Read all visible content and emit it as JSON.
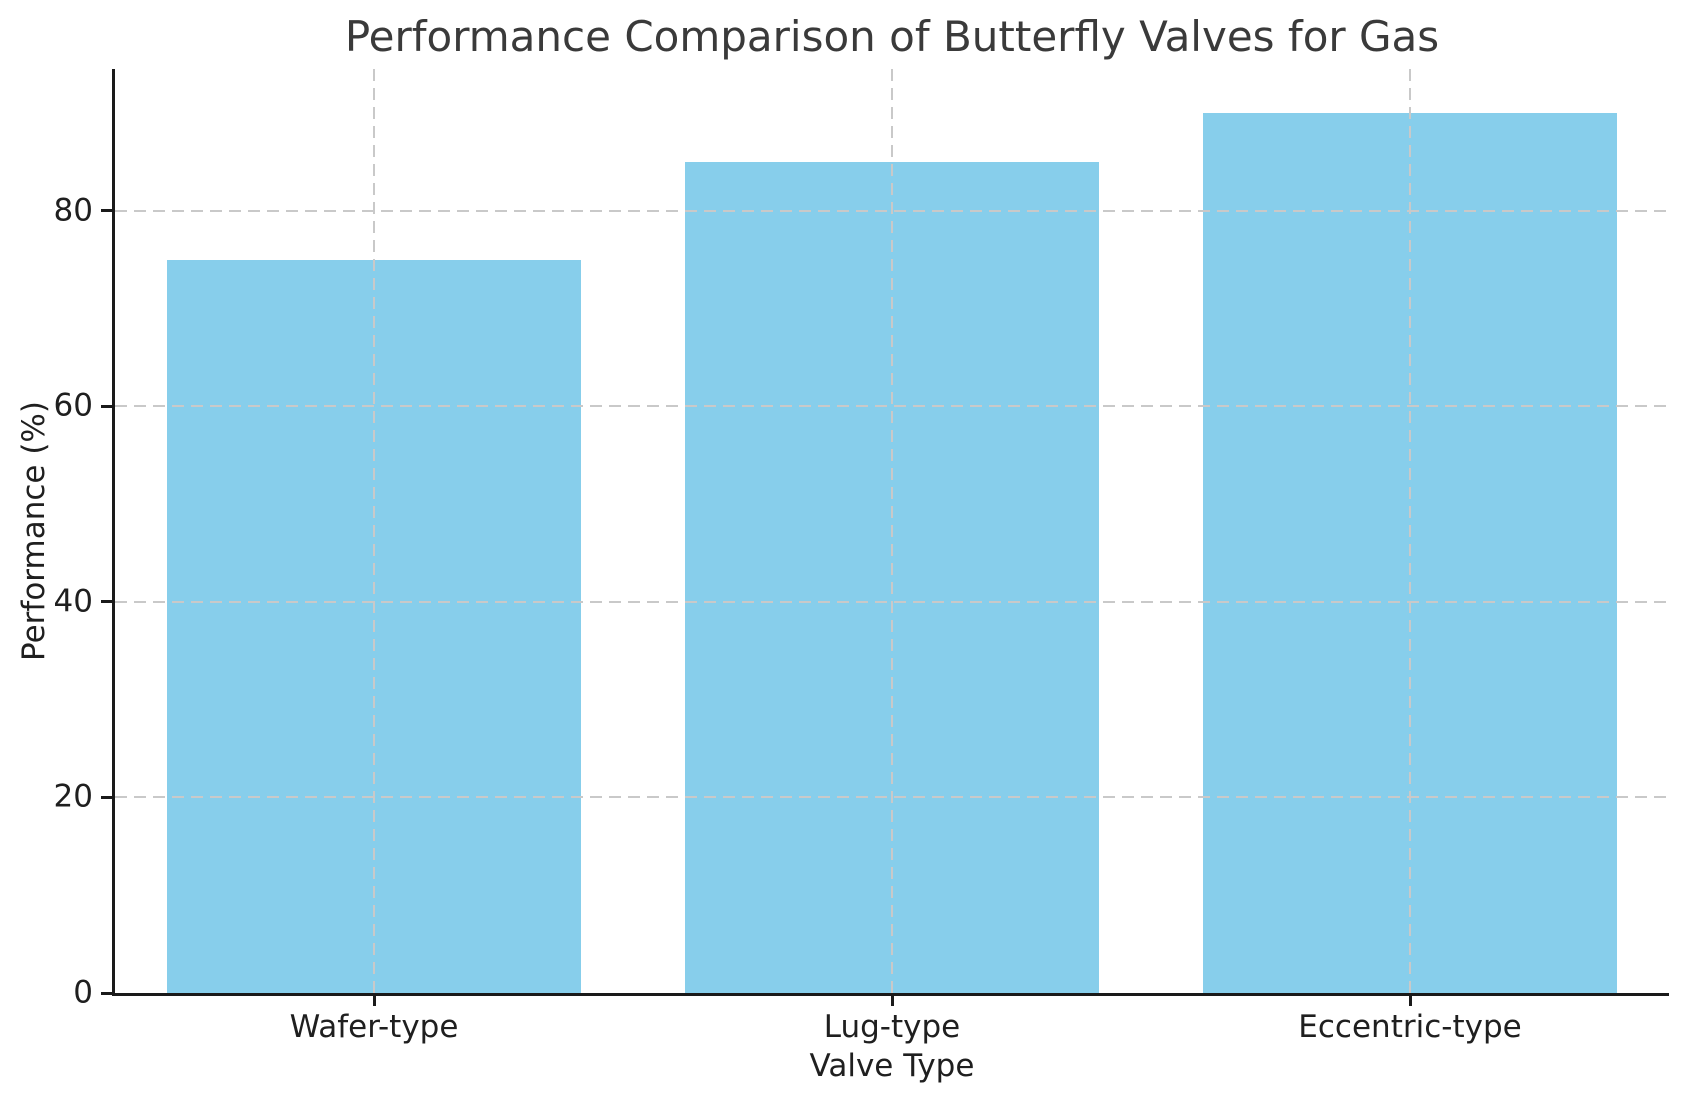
{
  "chart_data": {
    "type": "bar",
    "title": "Performance Comparison of Butterfly Valves for Gas",
    "xlabel": "Valve Type",
    "ylabel": "Performance (%)",
    "categories": [
      "Wafer-type",
      "Lug-type",
      "Eccentric-type"
    ],
    "values": [
      75,
      85,
      90
    ],
    "yticks": [
      0,
      20,
      40,
      60,
      80
    ],
    "ylim": [
      0,
      94.5
    ],
    "bar_width_fraction": 0.8,
    "bar_color": "#87CEEB",
    "grid": "on",
    "grid_style": "dashed",
    "grid_color": "#c9c9c9",
    "grid_above_bars": true,
    "legend": "none",
    "spines": "left-bottom-only"
  }
}
